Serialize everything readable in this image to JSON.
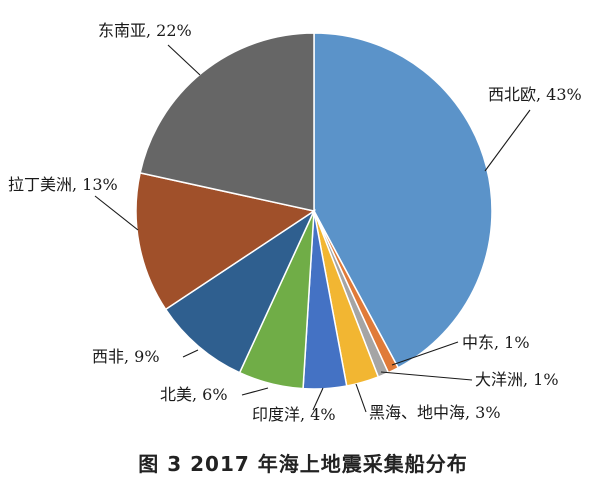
{
  "caption": "图 3   2017 年海上地震采集船分布",
  "chart_data": {
    "type": "pie",
    "title": "",
    "start_angle_deg": 0,
    "direction": "clockwise",
    "slices": [
      {
        "label": "西北欧, 43%",
        "name": "西北欧",
        "value": 43,
        "color": "#5b93c9"
      },
      {
        "label": "中东, 1%",
        "name": "中东",
        "value": 1,
        "color": "#e07b39"
      },
      {
        "label": "大洋洲, 1%",
        "name": "大洋洲",
        "value": 1,
        "color": "#a5a5a5"
      },
      {
        "label": "黑海、地中海, 3%",
        "name": "黑海、地中海",
        "value": 3,
        "color": "#f2b632"
      },
      {
        "label": "印度洋, 4%",
        "name": "印度洋",
        "value": 4,
        "color": "#4472c4"
      },
      {
        "label": "北美, 6%",
        "name": "北美",
        "value": 6,
        "color": "#70ad47"
      },
      {
        "label": "西非, 9%",
        "name": "西非",
        "value": 9,
        "color": "#2f5f8f"
      },
      {
        "label": "拉丁美洲, 13%",
        "name": "拉丁美洲",
        "value": 13,
        "color": "#a0502a"
      },
      {
        "label": "东南亚, 22%",
        "name": "东南亚",
        "value": 22,
        "color": "#666666"
      }
    ]
  }
}
